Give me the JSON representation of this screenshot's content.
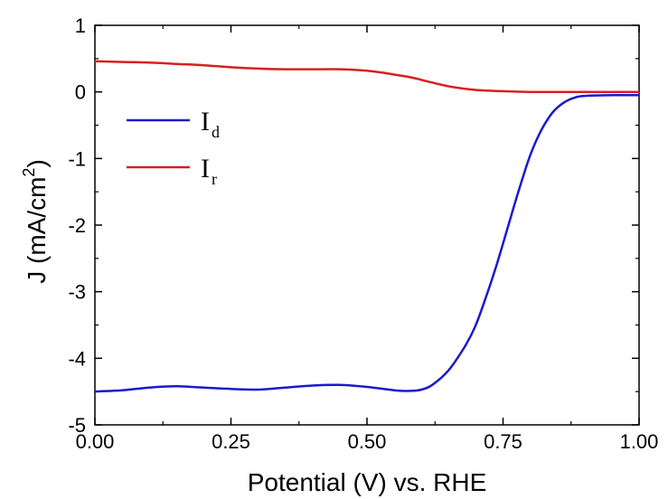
{
  "chart_data": {
    "type": "line",
    "title": "",
    "xlabel": "Potential (V) vs. RHE",
    "ylabel_main": "J (mA/cm",
    "ylabel_sup": "2",
    "ylabel_tail": ")",
    "xlim": [
      0.0,
      1.0
    ],
    "ylim": [
      -5,
      1
    ],
    "xticks": [
      "0.00",
      "0.25",
      "0.50",
      "0.75",
      "1.00"
    ],
    "xtick_values": [
      0.0,
      0.25,
      0.5,
      0.75,
      1.0
    ],
    "yticks": [
      "1",
      "0",
      "-1",
      "-2",
      "-3",
      "-4",
      "-5"
    ],
    "ytick_values": [
      1,
      0,
      -1,
      -2,
      -3,
      -4,
      -5
    ],
    "grid": false,
    "legend_position": "upper-left",
    "series": [
      {
        "legend_main": "I",
        "legend_sub": "d",
        "color": "#1a1acc",
        "points": [
          [
            0.0,
            -4.5
          ],
          [
            0.05,
            -4.48
          ],
          [
            0.1,
            -4.44
          ],
          [
            0.15,
            -4.42
          ],
          [
            0.2,
            -4.44
          ],
          [
            0.25,
            -4.46
          ],
          [
            0.3,
            -4.47
          ],
          [
            0.35,
            -4.44
          ],
          [
            0.4,
            -4.41
          ],
          [
            0.45,
            -4.4
          ],
          [
            0.5,
            -4.43
          ],
          [
            0.55,
            -4.48
          ],
          [
            0.58,
            -4.49
          ],
          [
            0.6,
            -4.47
          ],
          [
            0.62,
            -4.4
          ],
          [
            0.65,
            -4.18
          ],
          [
            0.68,
            -3.82
          ],
          [
            0.7,
            -3.5
          ],
          [
            0.72,
            -3.05
          ],
          [
            0.74,
            -2.55
          ],
          [
            0.76,
            -2.0
          ],
          [
            0.78,
            -1.45
          ],
          [
            0.8,
            -0.95
          ],
          [
            0.82,
            -0.58
          ],
          [
            0.84,
            -0.32
          ],
          [
            0.86,
            -0.17
          ],
          [
            0.88,
            -0.09
          ],
          [
            0.9,
            -0.06
          ],
          [
            0.95,
            -0.05
          ],
          [
            1.0,
            -0.05
          ]
        ]
      },
      {
        "legend_main": "I",
        "legend_sub": "r",
        "color": "#d62020",
        "points": [
          [
            0.0,
            0.46
          ],
          [
            0.05,
            0.45
          ],
          [
            0.1,
            0.44
          ],
          [
            0.15,
            0.42
          ],
          [
            0.2,
            0.4
          ],
          [
            0.25,
            0.37
          ],
          [
            0.3,
            0.35
          ],
          [
            0.35,
            0.34
          ],
          [
            0.4,
            0.34
          ],
          [
            0.45,
            0.34
          ],
          [
            0.48,
            0.33
          ],
          [
            0.52,
            0.3
          ],
          [
            0.55,
            0.26
          ],
          [
            0.58,
            0.22
          ],
          [
            0.6,
            0.18
          ],
          [
            0.63,
            0.12
          ],
          [
            0.66,
            0.07
          ],
          [
            0.7,
            0.03
          ],
          [
            0.75,
            0.01
          ],
          [
            0.8,
            0.0
          ],
          [
            0.9,
            0.0
          ],
          [
            1.0,
            0.0
          ]
        ]
      }
    ]
  }
}
